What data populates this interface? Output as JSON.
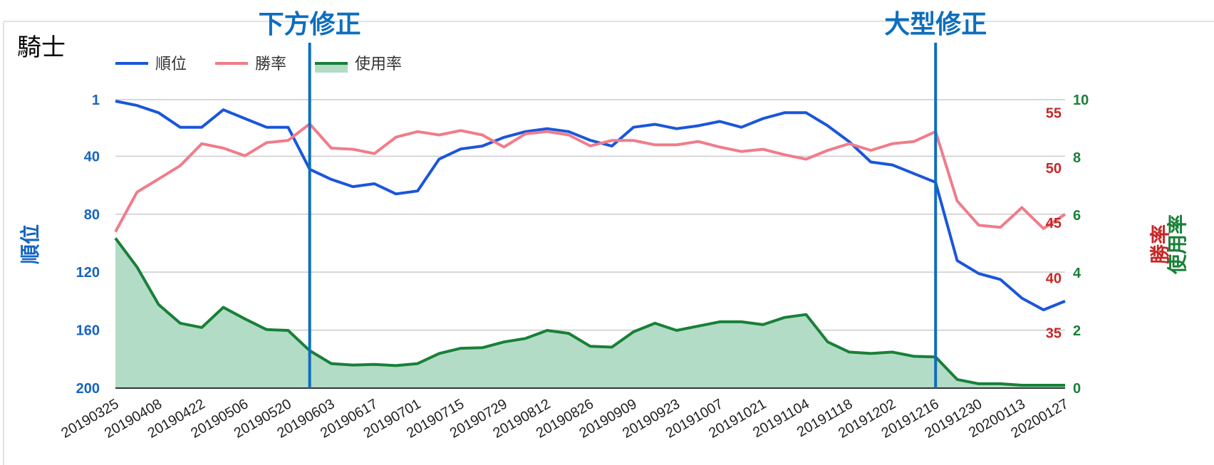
{
  "chart_data": {
    "type": "line",
    "title": "騎士",
    "x": [
      "20190325",
      "20190401",
      "20190408",
      "20190415",
      "20190422",
      "20190429",
      "20190506",
      "20190513",
      "20190520",
      "20190527",
      "20190603",
      "20190610",
      "20190617",
      "20190624",
      "20190701",
      "20190708",
      "20190715",
      "20190722",
      "20190729",
      "20190805",
      "20190812",
      "20190819",
      "20190826",
      "20190902",
      "20190909",
      "20190916",
      "20190923",
      "20190930",
      "20191007",
      "20191014",
      "20191021",
      "20191028",
      "20191104",
      "20191111",
      "20191118",
      "20191125",
      "20191202",
      "20191209",
      "20191216",
      "20191223",
      "20191230",
      "20200106",
      "20200113",
      "20200120",
      "20200127"
    ],
    "xtick_labels": [
      "20190325",
      "20190408",
      "20190422",
      "20190506",
      "20190520",
      "20190603",
      "20190617",
      "20190701",
      "20190715",
      "20190729",
      "20190812",
      "20190826",
      "20190909",
      "20190923",
      "20191007",
      "20191021",
      "20191104",
      "20191118",
      "20191202",
      "20191216",
      "20191230",
      "20200113",
      "20200127"
    ],
    "series": [
      {
        "name": "順位",
        "axis": "left",
        "color": "#1a56db",
        "values": [
          2,
          5,
          10,
          20,
          20,
          8,
          14,
          20,
          20,
          49,
          56,
          61,
          59,
          66,
          64,
          42,
          35,
          33,
          27,
          23,
          21,
          23,
          29,
          33,
          20,
          18,
          21,
          19,
          16,
          20,
          14,
          10,
          10,
          19,
          30,
          44,
          46,
          52,
          58,
          112,
          121,
          125,
          138,
          146,
          140
        ]
      },
      {
        "name": "勝率",
        "axis": "right_win",
        "color": "#f07c8a",
        "values": [
          44.2,
          47.8,
          49.0,
          50.2,
          52.2,
          51.8,
          51.1,
          52.3,
          52.5,
          54.0,
          51.8,
          51.7,
          51.3,
          52.8,
          53.3,
          53.0,
          53.4,
          53.0,
          51.9,
          53.1,
          53.3,
          53.0,
          52.0,
          52.5,
          52.5,
          52.1,
          52.1,
          52.4,
          51.9,
          51.5,
          51.7,
          51.2,
          50.8,
          51.6,
          52.2,
          51.6,
          52.2,
          52.4,
          53.3,
          47.0,
          44.8,
          44.6,
          46.4,
          44.5,
          45.8
        ]
      },
      {
        "name": "使用率",
        "axis": "right_use",
        "color": "#188038",
        "fill": "#b3dcc6",
        "values": [
          5.2,
          4.2,
          2.9,
          2.25,
          2.1,
          2.8,
          2.4,
          2.03,
          2.0,
          1.3,
          0.85,
          0.8,
          0.82,
          0.78,
          0.85,
          1.2,
          1.38,
          1.4,
          1.6,
          1.72,
          2.0,
          1.9,
          1.45,
          1.42,
          1.95,
          2.25,
          2.0,
          2.15,
          2.3,
          2.3,
          2.2,
          2.45,
          2.55,
          1.6,
          1.25,
          1.2,
          1.25,
          1.1,
          1.08,
          0.3,
          0.15,
          0.15,
          0.1,
          0.1,
          0.1
        ]
      }
    ],
    "left_axis": {
      "label": "順位",
      "range": [
        1,
        200
      ],
      "ticks": [
        "1",
        "40",
        "80",
        "120",
        "160",
        "200"
      ],
      "tick_values": [
        1,
        40,
        80,
        120,
        160,
        200
      ],
      "inverted": true
    },
    "right_axis_win": {
      "label": "勝率",
      "ticks": [
        "55",
        "50",
        "45",
        "40",
        "35"
      ],
      "tick_values": [
        55,
        50,
        45,
        40,
        35
      ],
      "range": [
        30,
        56.2
      ]
    },
    "right_axis_use": {
      "label": "使用率",
      "ticks": [
        "10",
        "8",
        "6",
        "4",
        "2",
        "0"
      ],
      "tick_values": [
        10,
        8,
        6,
        4,
        2,
        0
      ],
      "range": [
        0,
        10
      ]
    },
    "annotations": [
      {
        "label": "下方修正",
        "x": "20190527"
      },
      {
        "label": "大型修正",
        "x": "20191216"
      }
    ],
    "legend": {
      "placement": "top-left",
      "items": [
        "順位",
        "勝率",
        "使用率"
      ]
    },
    "grid": true
  }
}
